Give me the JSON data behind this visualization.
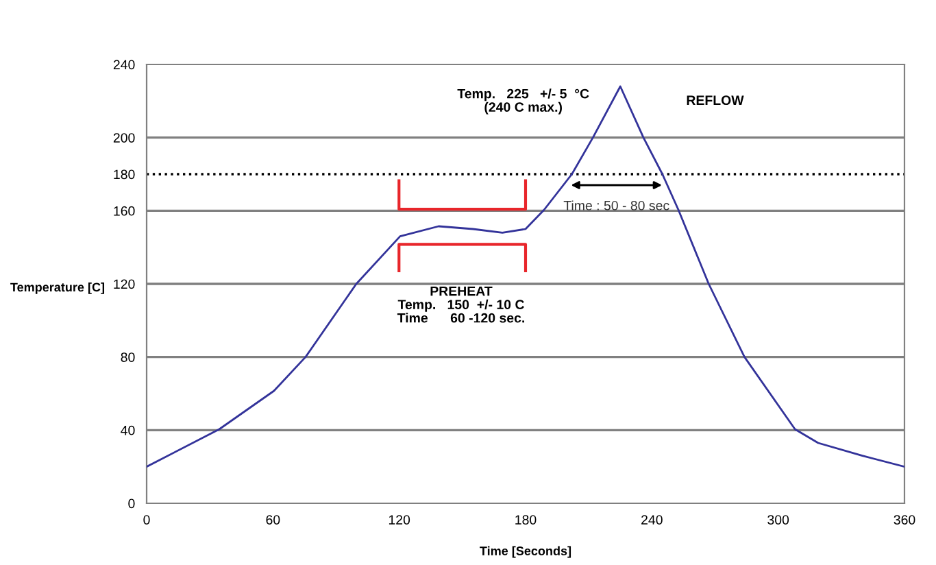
{
  "chart_data": {
    "type": "line",
    "xlabel": "Time [Seconds]",
    "ylabel": "Temperature [C]",
    "x": [
      0,
      34.5,
      60.5,
      75.5,
      99.6,
      120.4,
      138.7,
      155,
      169,
      180,
      188.8,
      202,
      212,
      225,
      236,
      245,
      252.6,
      267,
      284,
      308,
      319,
      340,
      360
    ],
    "series": [
      {
        "color": "#33339a",
        "values": [
          20,
          40.5,
          61.5,
          80,
          120,
          146,
          151.5,
          150,
          148,
          150,
          160.5,
          180,
          200,
          228,
          200,
          180,
          160.5,
          120,
          80,
          40.5,
          33,
          26,
          20
        ]
      }
    ],
    "xlim": [
      0,
      360
    ],
    "xticks": [
      0,
      60,
      120,
      180,
      240,
      300,
      360
    ],
    "ylim": [
      0,
      240
    ],
    "yticks": [
      0,
      40,
      80,
      120,
      160,
      180,
      200,
      240
    ],
    "grid": "y",
    "legend": false,
    "marker": "none",
    "line_style": "solid",
    "ref_lines": [
      {
        "axis": "y",
        "value": 180,
        "label": null,
        "color": "#000000",
        "line_style": "dotted"
      }
    ],
    "annotations": [
      "Temp.   225   +/- 5  °C\n(240 C max.)",
      "REFLOW",
      "PREHEAT\nTemp.   150  +/- 10 C\nTime      60 -120 sec.",
      "Time : 50 - 80 sec"
    ]
  }
}
